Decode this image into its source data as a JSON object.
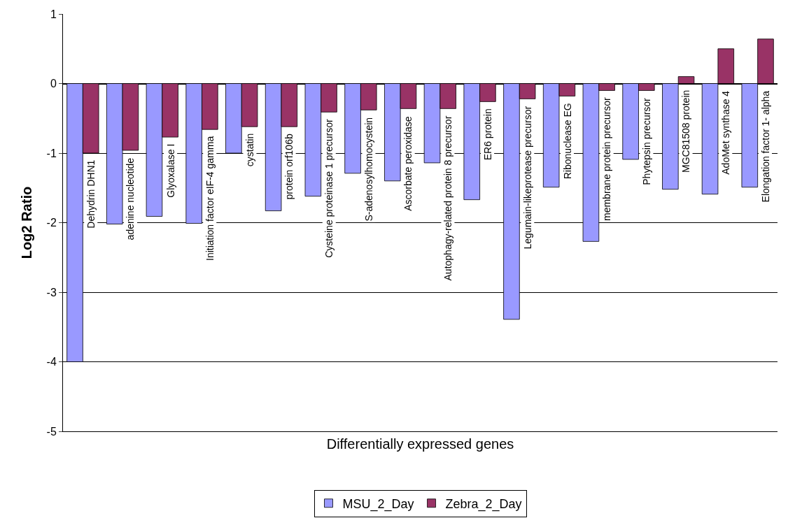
{
  "chart_data": {
    "type": "bar",
    "xlabel": "Differentially expressed genes",
    "ylabel": "Log2 Ratio",
    "categories": [
      "Dehydrin DHN1",
      "adenine nucleotide",
      "Glyoxalase I",
      "Initiation factor eIF-4 gamma",
      "cystatin",
      "protein orf106b",
      "Cysteine proteinase 1 precursor",
      "S-adenosylhomocystein",
      "Ascorbate peroxidase",
      "Autophagy-related protein 8 precursor",
      "ER6 protein",
      "Legumain-likeprotease precursor",
      "Ribonuclease EG",
      "membrane protein precursor",
      "Phytepsin precursor",
      "MGC81508 protein",
      "AdoMet synthase 4",
      "Elongation factor 1- alpha"
    ],
    "series": [
      {
        "name": "MSU_2_Day",
        "color": "#9999ff",
        "values": [
          -4.0,
          -2.02,
          -1.91,
          -2.01,
          -1.0,
          -1.83,
          -1.62,
          -1.29,
          -1.4,
          -1.14,
          -1.67,
          -3.39,
          -1.49,
          -2.27,
          -1.09,
          -1.52,
          -1.59,
          -1.49
        ]
      },
      {
        "name": "Zebra_2_Day",
        "color": "#993366",
        "values": [
          -1.0,
          -0.96,
          -0.77,
          -0.66,
          -0.62,
          -0.62,
          -0.41,
          -0.38,
          -0.36,
          -0.36,
          -0.26,
          -0.22,
          -0.18,
          -0.1,
          -0.1,
          0.1,
          0.5,
          0.64
        ]
      }
    ],
    "ylim": [
      -5,
      1
    ],
    "yticks": [
      -5,
      -4,
      -3,
      -2,
      -1,
      0,
      1
    ],
    "grid": "y",
    "legend": "bottom",
    "tick_labels": "y"
  }
}
